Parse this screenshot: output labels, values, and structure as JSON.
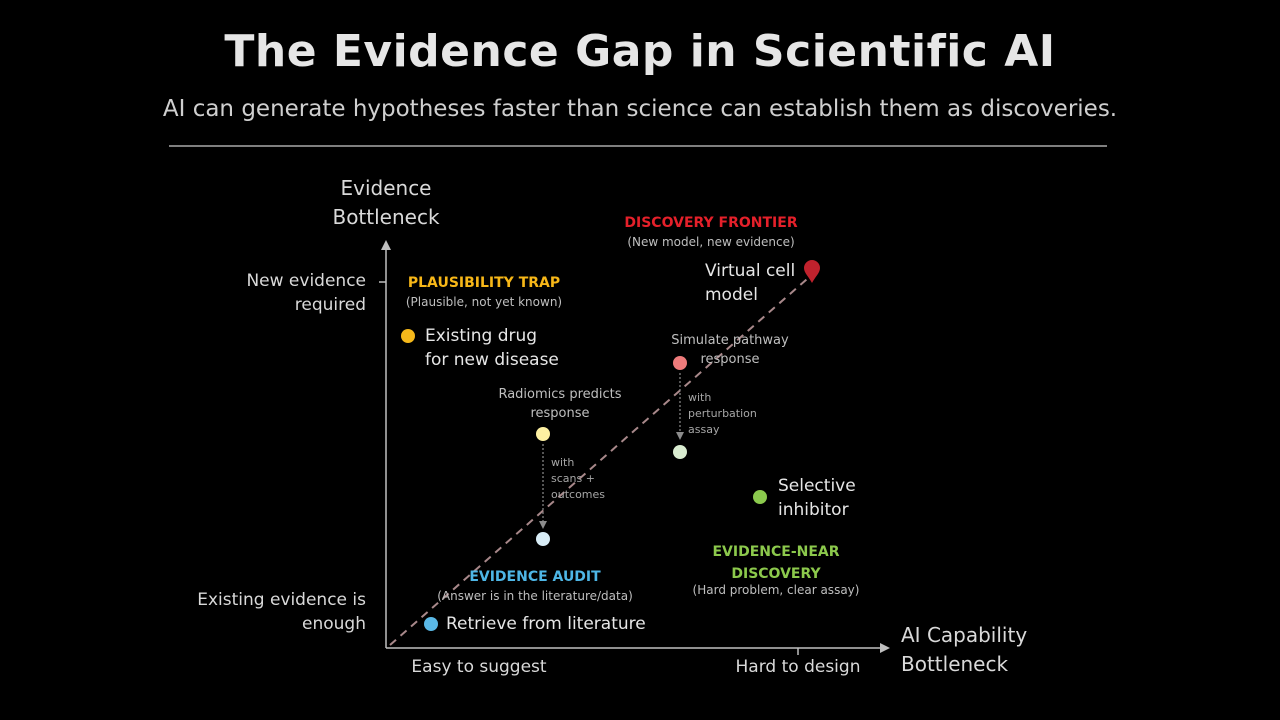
{
  "title": "The Evidence Gap in Scientific AI",
  "subtitle": "AI can generate hypotheses faster than science can establish them as discoveries.",
  "axes": {
    "y_title": [
      "Evidence",
      "Bottleneck"
    ],
    "x_title": [
      "AI Capability",
      "Bottleneck"
    ],
    "y_ticks": {
      "top": [
        "New evidence",
        "required"
      ],
      "bottom": [
        "Existing evidence is",
        "enough"
      ]
    },
    "x_ticks": {
      "left": "Easy to suggest",
      "right": "Hard to design"
    }
  },
  "regions": {
    "discovery_frontier": {
      "title": "DISCOVERY FRONTIER",
      "note": "(New model, new evidence)",
      "color": "#e5202a"
    },
    "plausibility_trap": {
      "title": "PLAUSIBILITY TRAP",
      "note": "(Plausible, not yet known)",
      "color": "#f7b718"
    },
    "evidence_audit": {
      "title": "EVIDENCE AUDIT",
      "note": "(Answer is in the literature/data)",
      "color": "#4eb6e6"
    },
    "evidence_near": {
      "title": [
        "EVIDENCE-NEAR",
        "DISCOVERY"
      ],
      "note": "(Hard problem, clear assay)",
      "color": "#8cc94c"
    }
  },
  "points": {
    "virtual_cell": {
      "label": [
        "Virtual cell",
        "model"
      ],
      "color": "#c0222d",
      "marker": "pin"
    },
    "existing_drug": {
      "label": [
        "Existing drug",
        "for new disease"
      ],
      "color": "#f5b81a"
    },
    "simulate_pathway": {
      "label": [
        "Simulate pathway",
        "response"
      ],
      "color": "#ee7b7b"
    },
    "simulate_pathway_after": {
      "color": "#d9ecd0"
    },
    "radiomics": {
      "label": [
        "Radiomics predicts",
        "response"
      ],
      "color": "#fdf0a2"
    },
    "radiomics_after": {
      "color": "#d8ecf6"
    },
    "selective_inhibitor": {
      "label": [
        "Selective",
        "inhibitor"
      ],
      "color": "#8bc94d"
    },
    "retrieve": {
      "label": "Retrieve from literature",
      "color": "#5ab8e6"
    }
  },
  "transitions": {
    "radiomics": [
      "with",
      "scans +",
      "outcomes"
    ],
    "pathway": [
      "with",
      "perturbation",
      "assay"
    ]
  },
  "colors": {
    "axis": "#bfbfbf",
    "diagonal": "#a8888a",
    "arrow": "#8c8c8c"
  }
}
